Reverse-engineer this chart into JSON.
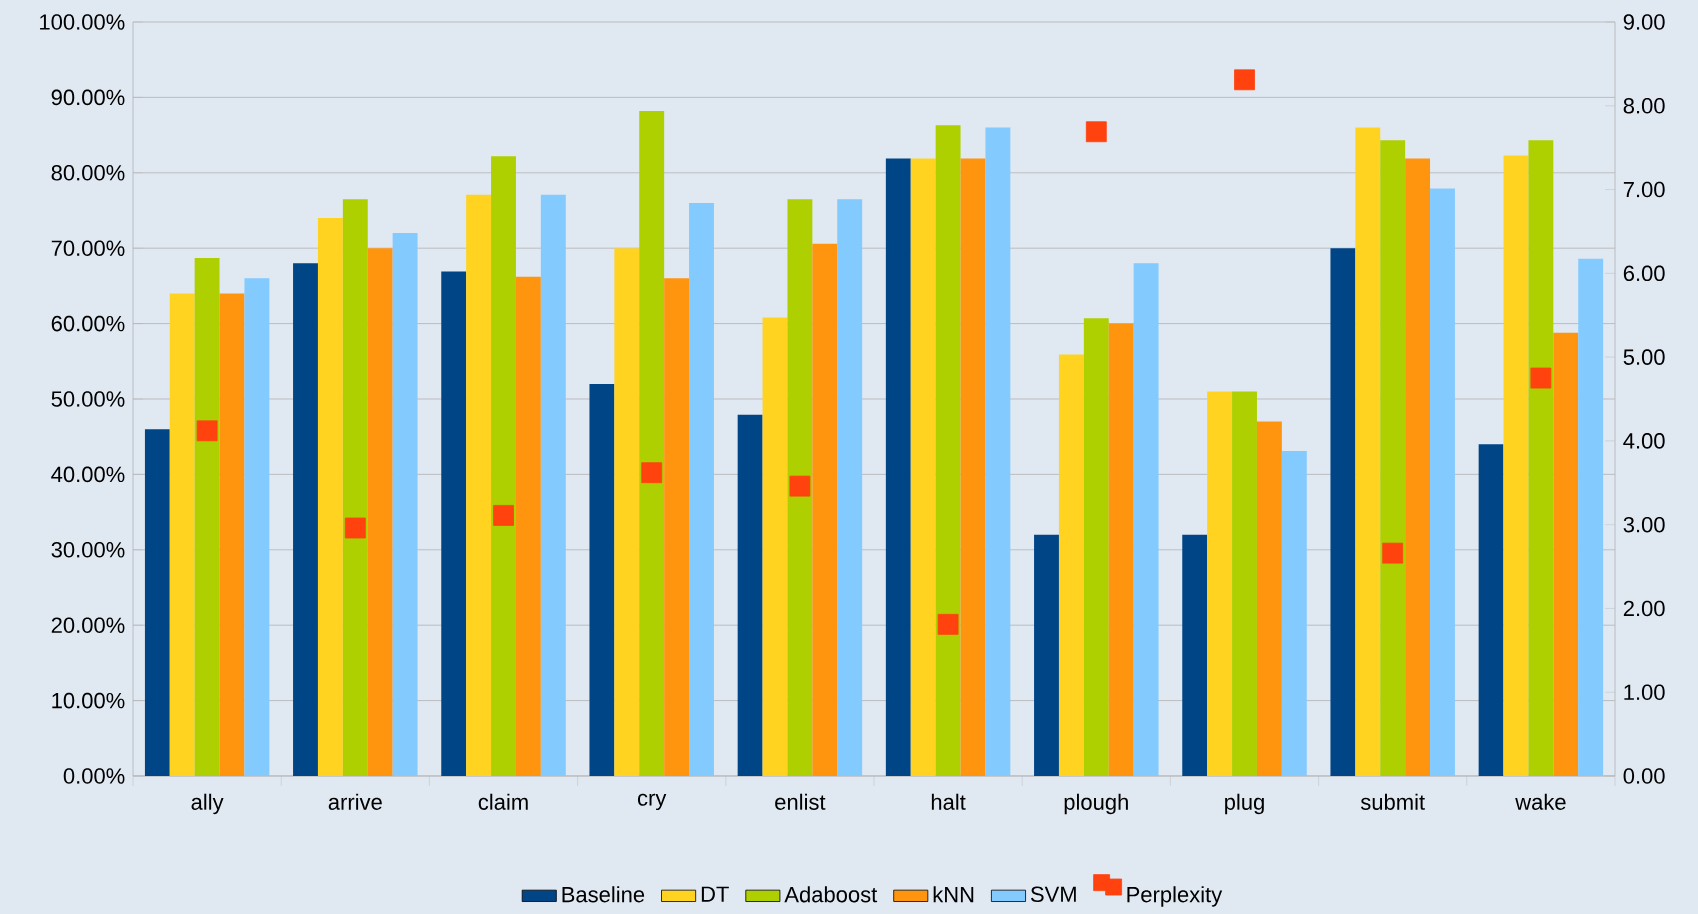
{
  "chart_data": {
    "type": "bar",
    "categories": [
      "ally",
      "arrive",
      "claim",
      "cry",
      "enlist",
      "halt",
      "plough",
      "plug",
      "submit",
      "wake"
    ],
    "series": [
      {
        "name": "Baseline",
        "color": "#004586",
        "values": [
          46.0,
          68.0,
          66.9,
          52.0,
          47.9,
          81.9,
          32.0,
          32.0,
          70.0,
          44.0
        ]
      },
      {
        "name": "DT",
        "color": "#ffd320",
        "values": [
          64.0,
          74.0,
          77.1,
          70.0,
          60.8,
          81.9,
          55.9,
          51.0,
          86.0,
          82.3
        ]
      },
      {
        "name": "Adaboost",
        "color": "#aecf00",
        "values": [
          68.7,
          76.5,
          82.2,
          88.2,
          76.5,
          86.3,
          60.7,
          51.0,
          84.3,
          84.3
        ]
      },
      {
        "name": "kNN",
        "color": "#ff950e",
        "values": [
          64.0,
          70.0,
          66.2,
          66.0,
          70.6,
          81.9,
          60.0,
          47.0,
          81.9,
          58.8
        ]
      },
      {
        "name": "SVM",
        "color": "#83caff",
        "values": [
          66.0,
          72.0,
          77.1,
          76.0,
          76.5,
          86.0,
          68.0,
          43.1,
          77.9,
          68.6
        ]
      },
      {
        "name": "Perplexity",
        "color": "#ff420e",
        "type": "scatter",
        "axis": "y2",
        "marker": "square",
        "values": [
          4.12,
          2.96,
          3.11,
          3.62,
          3.46,
          1.81,
          7.69,
          8.31,
          2.66,
          4.75
        ]
      }
    ],
    "ylim": [
      0,
      100
    ],
    "yticks": [
      {
        "value": 0,
        "label": "0.00%"
      },
      {
        "value": 10,
        "label": "10.00%"
      },
      {
        "value": 20,
        "label": "20.00%"
      },
      {
        "value": 30,
        "label": "30.00%"
      },
      {
        "value": 40,
        "label": "40.00%"
      },
      {
        "value": 50,
        "label": "50.00%"
      },
      {
        "value": 60,
        "label": "60.00%"
      },
      {
        "value": 70,
        "label": "70.00%"
      },
      {
        "value": 80,
        "label": "80.00%"
      },
      {
        "value": 90,
        "label": "90.00%"
      },
      {
        "value": 100,
        "label": "100.00%"
      }
    ],
    "y2lim": [
      0,
      9
    ],
    "y2ticks": [
      {
        "value": 0,
        "label": "0.00"
      },
      {
        "value": 1,
        "label": "1.00"
      },
      {
        "value": 2,
        "label": "2.00"
      },
      {
        "value": 3,
        "label": "3.00"
      },
      {
        "value": 4,
        "label": "4.00"
      },
      {
        "value": 5,
        "label": "5.00"
      },
      {
        "value": 6,
        "label": "6.00"
      },
      {
        "value": 7,
        "label": "7.00"
      },
      {
        "value": 8,
        "label": "8.00"
      },
      {
        "value": 9,
        "label": "9.00"
      }
    ],
    "grid": "y",
    "legend": "bottom"
  }
}
